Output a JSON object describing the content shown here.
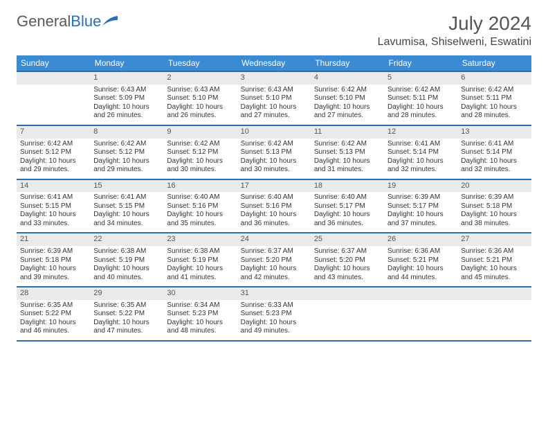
{
  "logo": {
    "text1": "General",
    "text2": "Blue"
  },
  "title": "July 2024",
  "location": "Lavumisa, Shiselweni, Eswatini",
  "colors": {
    "header_bg": "#3b8bd4",
    "header_text": "#ffffff",
    "border": "#2a6fb5",
    "daynum_bg": "#e9eaec",
    "logo_gray": "#5a5a5a",
    "logo_blue": "#2a6fb5"
  },
  "weekdays": [
    "Sunday",
    "Monday",
    "Tuesday",
    "Wednesday",
    "Thursday",
    "Friday",
    "Saturday"
  ],
  "first_weekday_index": 1,
  "days": [
    {
      "n": 1,
      "sunrise": "6:43 AM",
      "sunset": "5:09 PM",
      "daylight": "10 hours and 26 minutes."
    },
    {
      "n": 2,
      "sunrise": "6:43 AM",
      "sunset": "5:10 PM",
      "daylight": "10 hours and 26 minutes."
    },
    {
      "n": 3,
      "sunrise": "6:43 AM",
      "sunset": "5:10 PM",
      "daylight": "10 hours and 27 minutes."
    },
    {
      "n": 4,
      "sunrise": "6:42 AM",
      "sunset": "5:10 PM",
      "daylight": "10 hours and 27 minutes."
    },
    {
      "n": 5,
      "sunrise": "6:42 AM",
      "sunset": "5:11 PM",
      "daylight": "10 hours and 28 minutes."
    },
    {
      "n": 6,
      "sunrise": "6:42 AM",
      "sunset": "5:11 PM",
      "daylight": "10 hours and 28 minutes."
    },
    {
      "n": 7,
      "sunrise": "6:42 AM",
      "sunset": "5:12 PM",
      "daylight": "10 hours and 29 minutes."
    },
    {
      "n": 8,
      "sunrise": "6:42 AM",
      "sunset": "5:12 PM",
      "daylight": "10 hours and 29 minutes."
    },
    {
      "n": 9,
      "sunrise": "6:42 AM",
      "sunset": "5:12 PM",
      "daylight": "10 hours and 30 minutes."
    },
    {
      "n": 10,
      "sunrise": "6:42 AM",
      "sunset": "5:13 PM",
      "daylight": "10 hours and 30 minutes."
    },
    {
      "n": 11,
      "sunrise": "6:42 AM",
      "sunset": "5:13 PM",
      "daylight": "10 hours and 31 minutes."
    },
    {
      "n": 12,
      "sunrise": "6:41 AM",
      "sunset": "5:14 PM",
      "daylight": "10 hours and 32 minutes."
    },
    {
      "n": 13,
      "sunrise": "6:41 AM",
      "sunset": "5:14 PM",
      "daylight": "10 hours and 32 minutes."
    },
    {
      "n": 14,
      "sunrise": "6:41 AM",
      "sunset": "5:15 PM",
      "daylight": "10 hours and 33 minutes."
    },
    {
      "n": 15,
      "sunrise": "6:41 AM",
      "sunset": "5:15 PM",
      "daylight": "10 hours and 34 minutes."
    },
    {
      "n": 16,
      "sunrise": "6:40 AM",
      "sunset": "5:16 PM",
      "daylight": "10 hours and 35 minutes."
    },
    {
      "n": 17,
      "sunrise": "6:40 AM",
      "sunset": "5:16 PM",
      "daylight": "10 hours and 36 minutes."
    },
    {
      "n": 18,
      "sunrise": "6:40 AM",
      "sunset": "5:17 PM",
      "daylight": "10 hours and 36 minutes."
    },
    {
      "n": 19,
      "sunrise": "6:39 AM",
      "sunset": "5:17 PM",
      "daylight": "10 hours and 37 minutes."
    },
    {
      "n": 20,
      "sunrise": "6:39 AM",
      "sunset": "5:18 PM",
      "daylight": "10 hours and 38 minutes."
    },
    {
      "n": 21,
      "sunrise": "6:39 AM",
      "sunset": "5:18 PM",
      "daylight": "10 hours and 39 minutes."
    },
    {
      "n": 22,
      "sunrise": "6:38 AM",
      "sunset": "5:19 PM",
      "daylight": "10 hours and 40 minutes."
    },
    {
      "n": 23,
      "sunrise": "6:38 AM",
      "sunset": "5:19 PM",
      "daylight": "10 hours and 41 minutes."
    },
    {
      "n": 24,
      "sunrise": "6:37 AM",
      "sunset": "5:20 PM",
      "daylight": "10 hours and 42 minutes."
    },
    {
      "n": 25,
      "sunrise": "6:37 AM",
      "sunset": "5:20 PM",
      "daylight": "10 hours and 43 minutes."
    },
    {
      "n": 26,
      "sunrise": "6:36 AM",
      "sunset": "5:21 PM",
      "daylight": "10 hours and 44 minutes."
    },
    {
      "n": 27,
      "sunrise": "6:36 AM",
      "sunset": "5:21 PM",
      "daylight": "10 hours and 45 minutes."
    },
    {
      "n": 28,
      "sunrise": "6:35 AM",
      "sunset": "5:22 PM",
      "daylight": "10 hours and 46 minutes."
    },
    {
      "n": 29,
      "sunrise": "6:35 AM",
      "sunset": "5:22 PM",
      "daylight": "10 hours and 47 minutes."
    },
    {
      "n": 30,
      "sunrise": "6:34 AM",
      "sunset": "5:23 PM",
      "daylight": "10 hours and 48 minutes."
    },
    {
      "n": 31,
      "sunrise": "6:33 AM",
      "sunset": "5:23 PM",
      "daylight": "10 hours and 49 minutes."
    }
  ],
  "labels": {
    "sunrise": "Sunrise:",
    "sunset": "Sunset:",
    "daylight": "Daylight:"
  }
}
